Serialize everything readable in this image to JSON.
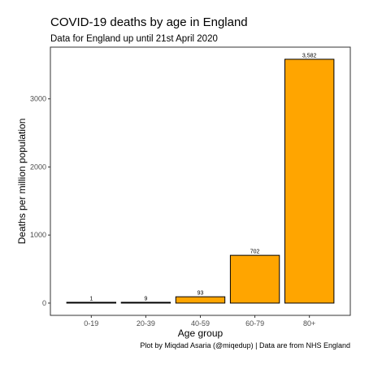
{
  "chart_data": {
    "type": "bar",
    "title": "COVID-19 deaths by age in England",
    "subtitle": "Data for England up until 21st April 2020",
    "xlabel": "Age group",
    "ylabel": "Deaths per million population",
    "caption": "Plot by Miqdad Asaria (@miqedup) | Data are from NHS England",
    "categories": [
      "0-19",
      "20-39",
      "40-59",
      "60-79",
      "80+"
    ],
    "values": [
      1,
      9,
      93,
      702,
      3582
    ],
    "data_labels": [
      "1",
      "9",
      "93",
      "702",
      "3,582"
    ],
    "yticks": [
      0,
      1000,
      2000,
      3000
    ],
    "ytick_labels": [
      "0",
      "1000",
      "2000",
      "3000"
    ],
    "ylim": [
      -180,
      3760
    ],
    "bar_color": "#FFA500",
    "bar_outline": "#000000",
    "grid": false
  }
}
